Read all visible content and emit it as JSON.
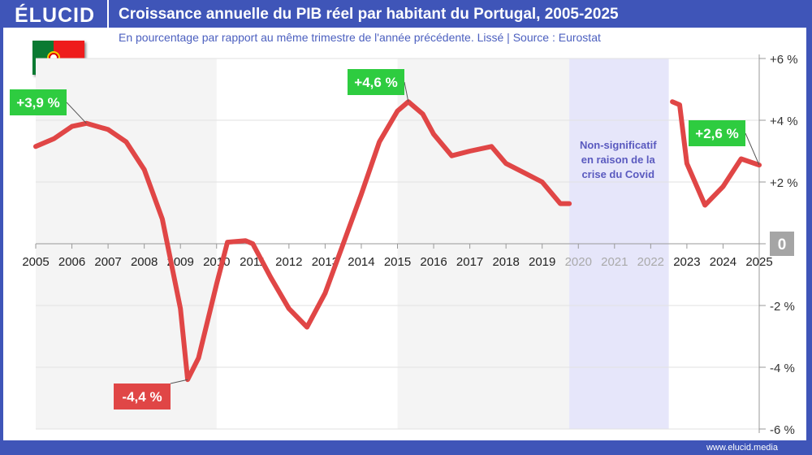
{
  "header": {
    "logo": "ÉLUCID",
    "title": "Croissance annuelle du PIB réel par habitant du Portugal, 2005-2025",
    "subtitle": "En pourcentage par rapport au même trimestre de l'année précédente. Lissé  |  Source : Eurostat",
    "site": "www.elucid.media",
    "flag": "portugal-flag"
  },
  "chart_data": {
    "type": "line",
    "title": "Croissance annuelle du PIB réel par habitant du Portugal, 2005-2025",
    "xlim": [
      2005,
      2025
    ],
    "ylim": [
      -6,
      6
    ],
    "x_ticks": [
      "2005",
      "2006",
      "2007",
      "2008",
      "2009",
      "2010",
      "2011",
      "2012",
      "2013",
      "2014",
      "2015",
      "2016",
      "2017",
      "2018",
      "2019",
      "2020",
      "2021",
      "2022",
      "2023",
      "2024",
      "2025"
    ],
    "y_ticks": [
      {
        "v": 6,
        "label": "+6 %"
      },
      {
        "v": 4,
        "label": "+4 %"
      },
      {
        "v": 2,
        "label": "+2 %"
      },
      {
        "v": 0,
        "label": "0"
      },
      {
        "v": -2,
        "label": "-2 %"
      },
      {
        "v": -4,
        "label": "-4 %"
      },
      {
        "v": -6,
        "label": "-6 %"
      }
    ],
    "grid": true,
    "line_color": "#e04646",
    "segments": [
      [
        [
          2005,
          3.15
        ],
        [
          2005.5,
          3.4
        ],
        [
          2006,
          3.8
        ],
        [
          2006.4,
          3.9
        ],
        [
          2007,
          3.7
        ],
        [
          2007.5,
          3.3
        ],
        [
          2008,
          2.4
        ],
        [
          2008.5,
          0.8
        ],
        [
          2009,
          -2.1
        ],
        [
          2009.2,
          -4.4
        ],
        [
          2009.5,
          -3.7
        ],
        [
          2010,
          -1.3
        ],
        [
          2010.3,
          0.05
        ],
        [
          2010.8,
          0.1
        ],
        [
          2011,
          0
        ],
        [
          2011.5,
          -1.1
        ],
        [
          2012,
          -2.1
        ],
        [
          2012.5,
          -2.7
        ],
        [
          2013,
          -1.6
        ],
        [
          2013.5,
          0
        ],
        [
          2014,
          1.6
        ],
        [
          2014.5,
          3.3
        ],
        [
          2015,
          4.3
        ],
        [
          2015.3,
          4.6
        ],
        [
          2015.7,
          4.2
        ],
        [
          2016,
          3.55
        ],
        [
          2016.5,
          2.85
        ],
        [
          2017,
          3.0
        ],
        [
          2017.6,
          3.15
        ],
        [
          2018,
          2.6
        ],
        [
          2018.5,
          2.3
        ],
        [
          2019,
          2.0
        ],
        [
          2019.5,
          1.3
        ],
        [
          2019.75,
          1.3
        ]
      ],
      [
        [
          2022.6,
          4.6
        ],
        [
          2022.8,
          4.5
        ],
        [
          2023,
          2.6
        ],
        [
          2023.5,
          1.25
        ],
        [
          2024,
          1.85
        ],
        [
          2024.5,
          2.75
        ],
        [
          2025,
          2.55
        ]
      ]
    ],
    "shaded_ranges": [
      {
        "from": 2005,
        "to": 2010,
        "color": "#f4f4f4"
      },
      {
        "from": 2015,
        "to": 2019.75,
        "color": "#f4f4f4"
      },
      {
        "from": 2019.75,
        "to": 2022.5,
        "color": "#e6e6fa"
      }
    ],
    "greyed_ticks": [
      "2020",
      "2021",
      "2022"
    ],
    "annotations": [
      {
        "x": 2006.4,
        "y": 3.9,
        "label": "+3,9 %",
        "color": "#2ecc40"
      },
      {
        "x": 2009.2,
        "y": -4.4,
        "label": "-4,4 %",
        "color": "#e04646"
      },
      {
        "x": 2015.3,
        "y": 4.6,
        "label": "+4,6 %",
        "color": "#2ecc40"
      },
      {
        "x": 2025,
        "y": 2.55,
        "label": "+2,6 %",
        "color": "#2ecc40"
      }
    ],
    "covid_note": [
      "Non-significatif",
      "en raison de la",
      "crise du Covid"
    ]
  }
}
